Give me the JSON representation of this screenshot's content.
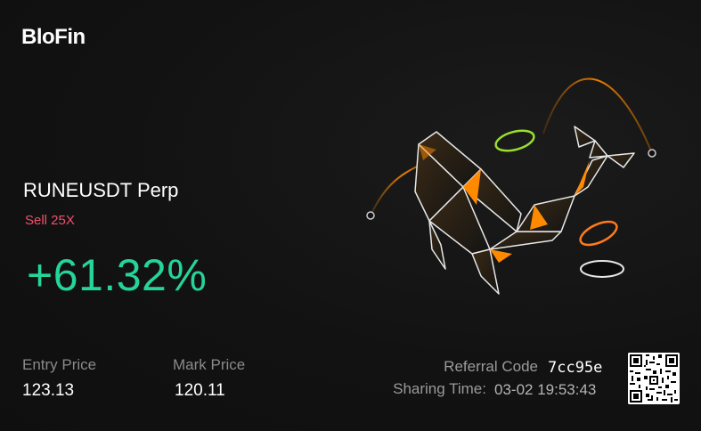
{
  "brand": {
    "name": "BloFin"
  },
  "position": {
    "pair": "RUNEUSDT Perp",
    "side": "Sell 25X",
    "pnl": "+61.32%"
  },
  "stats": {
    "entry_label": "Entry Price",
    "entry_value": "123.13",
    "mark_label": "Mark Price",
    "mark_value": "120.11"
  },
  "share": {
    "referral_label": "Referral Code",
    "referral_code": "7cc95e",
    "time_label": "Sharing Time:",
    "time_value": "03-02 19:53:43"
  },
  "colors": {
    "profit": "#25d49a",
    "sell": "#f0506e",
    "accent": "#ff8a00"
  },
  "icons": {
    "art": "whale-illustration",
    "qr": "qr-code"
  }
}
